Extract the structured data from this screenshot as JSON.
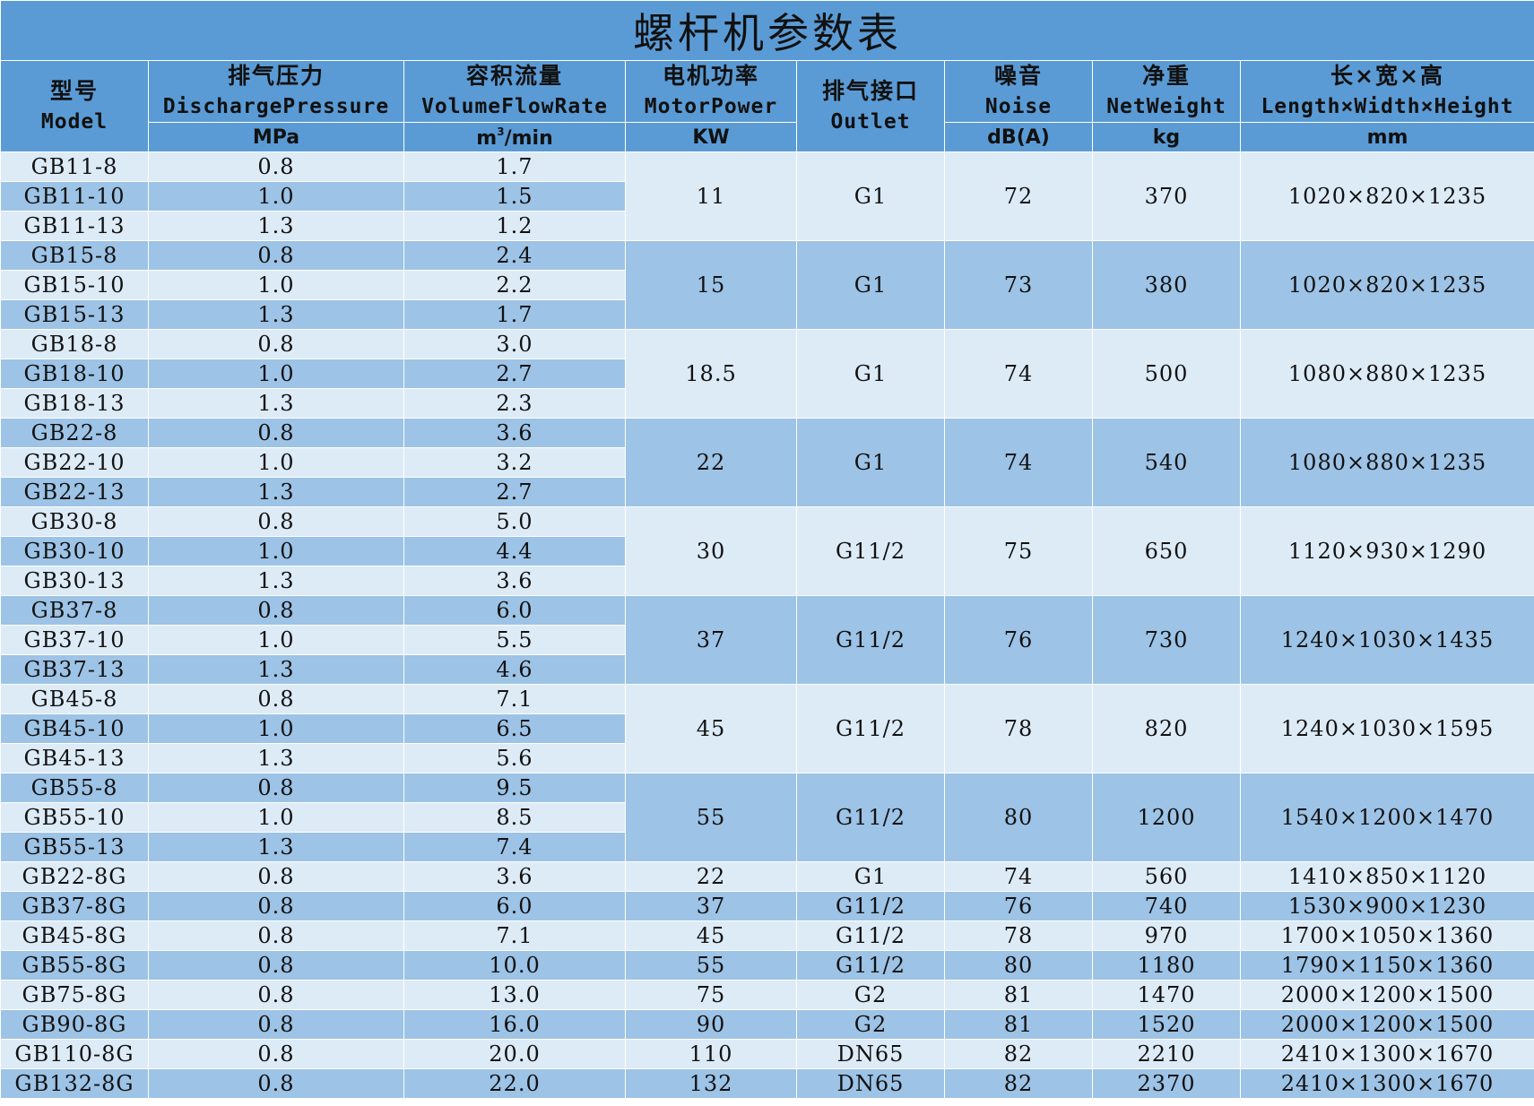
{
  "title": "螺杆机参数表",
  "headers": [
    {
      "cn": "型号",
      "en": "Model",
      "unit": ""
    },
    {
      "cn": "排气压力",
      "en": "DischargePressure",
      "unit": "MPa"
    },
    {
      "cn": "容积流量",
      "en": "VolumeFlowRate",
      "unit": "m3/min"
    },
    {
      "cn": "电机功率",
      "en": "MotorPower",
      "unit": "KW"
    },
    {
      "cn": "排气接口",
      "en": "Outlet",
      "unit": ""
    },
    {
      "cn": "噪音",
      "en": "Noise",
      "unit": "dB(A)"
    },
    {
      "cn": "净重",
      "en": "NetWeight",
      "unit": "kg"
    },
    {
      "cn": "长×宽×高",
      "en": "Length×Width×Height",
      "unit": "mm"
    }
  ],
  "flow_unit_parts": {
    "base": "m",
    "sup": "3",
    "rest": "/min"
  },
  "groups": [
    {
      "power": "11",
      "outlet": "G1",
      "noise": "72",
      "weight": "370",
      "dims": "1020×820×1235",
      "rows": [
        {
          "model": "GB11-8",
          "pressure": "0.8",
          "flow": "1.7"
        },
        {
          "model": "GB11-10",
          "pressure": "1.0",
          "flow": "1.5"
        },
        {
          "model": "GB11-13",
          "pressure": "1.3",
          "flow": "1.2"
        }
      ]
    },
    {
      "power": "15",
      "outlet": "G1",
      "noise": "73",
      "weight": "380",
      "dims": "1020×820×1235",
      "rows": [
        {
          "model": "GB15-8",
          "pressure": "0.8",
          "flow": "2.4"
        },
        {
          "model": "GB15-10",
          "pressure": "1.0",
          "flow": "2.2"
        },
        {
          "model": "GB15-13",
          "pressure": "1.3",
          "flow": "1.7"
        }
      ]
    },
    {
      "power": "18.5",
      "outlet": "G1",
      "noise": "74",
      "weight": "500",
      "dims": "1080×880×1235",
      "rows": [
        {
          "model": "GB18-8",
          "pressure": "0.8",
          "flow": "3.0"
        },
        {
          "model": "GB18-10",
          "pressure": "1.0",
          "flow": "2.7"
        },
        {
          "model": "GB18-13",
          "pressure": "1.3",
          "flow": "2.3"
        }
      ]
    },
    {
      "power": "22",
      "outlet": "G1",
      "noise": "74",
      "weight": "540",
      "dims": "1080×880×1235",
      "rows": [
        {
          "model": "GB22-8",
          "pressure": "0.8",
          "flow": "3.6"
        },
        {
          "model": "GB22-10",
          "pressure": "1.0",
          "flow": "3.2"
        },
        {
          "model": "GB22-13",
          "pressure": "1.3",
          "flow": "2.7"
        }
      ]
    },
    {
      "power": "30",
      "outlet": "G11/2",
      "noise": "75",
      "weight": "650",
      "dims": "1120×930×1290",
      "rows": [
        {
          "model": "GB30-8",
          "pressure": "0.8",
          "flow": "5.0"
        },
        {
          "model": "GB30-10",
          "pressure": "1.0",
          "flow": "4.4"
        },
        {
          "model": "GB30-13",
          "pressure": "1.3",
          "flow": "3.6"
        }
      ]
    },
    {
      "power": "37",
      "outlet": "G11/2",
      "noise": "76",
      "weight": "730",
      "dims": "1240×1030×1435",
      "rows": [
        {
          "model": "GB37-8",
          "pressure": "0.8",
          "flow": "6.0"
        },
        {
          "model": "GB37-10",
          "pressure": "1.0",
          "flow": "5.5"
        },
        {
          "model": "GB37-13",
          "pressure": "1.3",
          "flow": "4.6"
        }
      ]
    },
    {
      "power": "45",
      "outlet": "G11/2",
      "noise": "78",
      "weight": "820",
      "dims": "1240×1030×1595",
      "rows": [
        {
          "model": "GB45-8",
          "pressure": "0.8",
          "flow": "7.1"
        },
        {
          "model": "GB45-10",
          "pressure": "1.0",
          "flow": "6.5"
        },
        {
          "model": "GB45-13",
          "pressure": "1.3",
          "flow": "5.6"
        }
      ]
    },
    {
      "power": "55",
      "outlet": "G11/2",
      "noise": "80",
      "weight": "1200",
      "dims": "1540×1200×1470",
      "rows": [
        {
          "model": "GB55-8",
          "pressure": "0.8",
          "flow": "9.5"
        },
        {
          "model": "GB55-10",
          "pressure": "1.0",
          "flow": "8.5"
        },
        {
          "model": "GB55-13",
          "pressure": "1.3",
          "flow": "7.4"
        }
      ]
    }
  ],
  "single_rows": [
    {
      "model": "GB22-8G",
      "pressure": "0.8",
      "flow": "3.6",
      "power": "22",
      "outlet": "G1",
      "noise": "74",
      "weight": "560",
      "dims": "1410×850×1120"
    },
    {
      "model": "GB37-8G",
      "pressure": "0.8",
      "flow": "6.0",
      "power": "37",
      "outlet": "G11/2",
      "noise": "76",
      "weight": "740",
      "dims": "1530×900×1230"
    },
    {
      "model": "GB45-8G",
      "pressure": "0.8",
      "flow": "7.1",
      "power": "45",
      "outlet": "G11/2",
      "noise": "78",
      "weight": "970",
      "dims": "1700×1050×1360"
    },
    {
      "model": "GB55-8G",
      "pressure": "0.8",
      "flow": "10.0",
      "power": "55",
      "outlet": "G11/2",
      "noise": "80",
      "weight": "1180",
      "dims": "1790×1150×1360"
    },
    {
      "model": "GB75-8G",
      "pressure": "0.8",
      "flow": "13.0",
      "power": "75",
      "outlet": "G2",
      "noise": "81",
      "weight": "1470",
      "dims": "2000×1200×1500"
    },
    {
      "model": "GB90-8G",
      "pressure": "0.8",
      "flow": "16.0",
      "power": "90",
      "outlet": "G2",
      "noise": "81",
      "weight": "1520",
      "dims": "2000×1200×1500"
    },
    {
      "model": "GB110-8G",
      "pressure": "0.8",
      "flow": "20.0",
      "power": "110",
      "outlet": "DN65",
      "noise": "82",
      "weight": "2210",
      "dims": "2410×1300×1670"
    },
    {
      "model": "GB132-8G",
      "pressure": "0.8",
      "flow": "22.0",
      "power": "132",
      "outlet": "DN65",
      "noise": "82",
      "weight": "2370",
      "dims": "2410×1300×1670"
    }
  ],
  "colors": {
    "header": "#5b9bd5",
    "row_light": "#ddebf7",
    "row_mid": "#9dc3e6",
    "border": "#ffffff"
  }
}
